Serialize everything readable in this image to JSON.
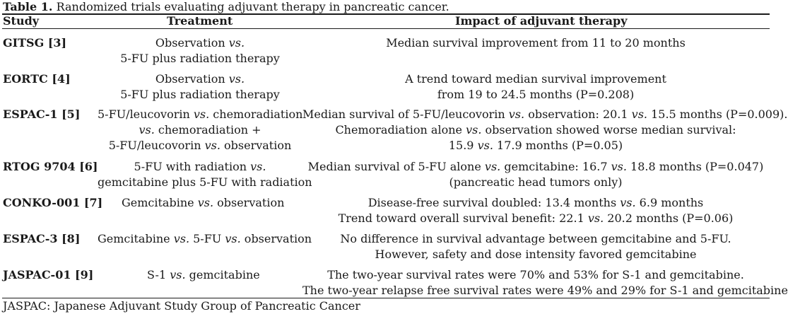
{
  "caption": {
    "label": "Table 1.",
    "text": "Randomized trials evaluating adjuvant therapy in pancreatic cancer."
  },
  "headers": {
    "study": "Study",
    "treatment": "Treatment",
    "impact": "Impact of adjuvant therapy"
  },
  "rows": [
    {
      "study": "GITSG [3]",
      "treatment": [
        "Observation vs.",
        "5-FU plus radiation therapy"
      ],
      "impact": [
        "Median survival improvement from 11 to 20 months"
      ]
    },
    {
      "study": "EORTC [4]",
      "treatment": [
        "Observation vs.",
        "5-FU plus radiation therapy"
      ],
      "impact": [
        "A trend toward median survival improvement",
        "from 19 to 24.5 months (P=0.208)"
      ]
    },
    {
      "study": "ESPAC-1 [5]",
      "treatment": [
        "5-FU/leucovorin vs. chemoradiation",
        "vs. chemoradiation +",
        "5-FU/leucovorin vs. observation"
      ],
      "impact": [
        "Median survival of 5-FU/leucovorin vs. observation: 20.1 vs. 15.5 months (P=0.009).",
        "Chemoradiation alone vs. observation showed worse median survival:",
        "15.9 vs. 17.9 months (P=0.05)"
      ]
    },
    {
      "study": "RTOG 9704 [6]",
      "treatment": [
        "5-FU with radiation vs.",
        "gemcitabine plus 5-FU with radiation"
      ],
      "impact": [
        "Median survival of 5-FU alone vs. gemcitabine: 16.7 vs. 18.8 months (P=0.047)",
        "(pancreatic head tumors only)"
      ]
    },
    {
      "study": "CONKO-001 [7]",
      "treatment": [
        "Gemcitabine vs. observation"
      ],
      "impact": [
        "Disease-free survival doubled: 13.4 months vs. 6.9 months",
        "Trend toward overall survival benefit: 22.1 vs. 20.2 months (P=0.06)"
      ]
    },
    {
      "study": "ESPAC-3 [8]",
      "treatment": [
        "Gemcitabine vs. 5-FU vs. observation"
      ],
      "impact": [
        "No difference in survival advantage between gemcitabine and 5-FU.",
        "However, safety and dose intensity favored gemcitabine"
      ]
    },
    {
      "study": "JASPAC-01 [9]",
      "treatment": [
        "S-1 vs. gemcitabine"
      ],
      "impact": [
        "The two-year survival rates were 70% and 53% for S-1 and gemcitabine.",
        "The two-year relapse free survival rates were 49% and 29% for S-1 and gemcitabine"
      ]
    }
  ],
  "footnote": "JASPAC: Japanese Adjuvant Study Group of Pancreatic Cancer"
}
